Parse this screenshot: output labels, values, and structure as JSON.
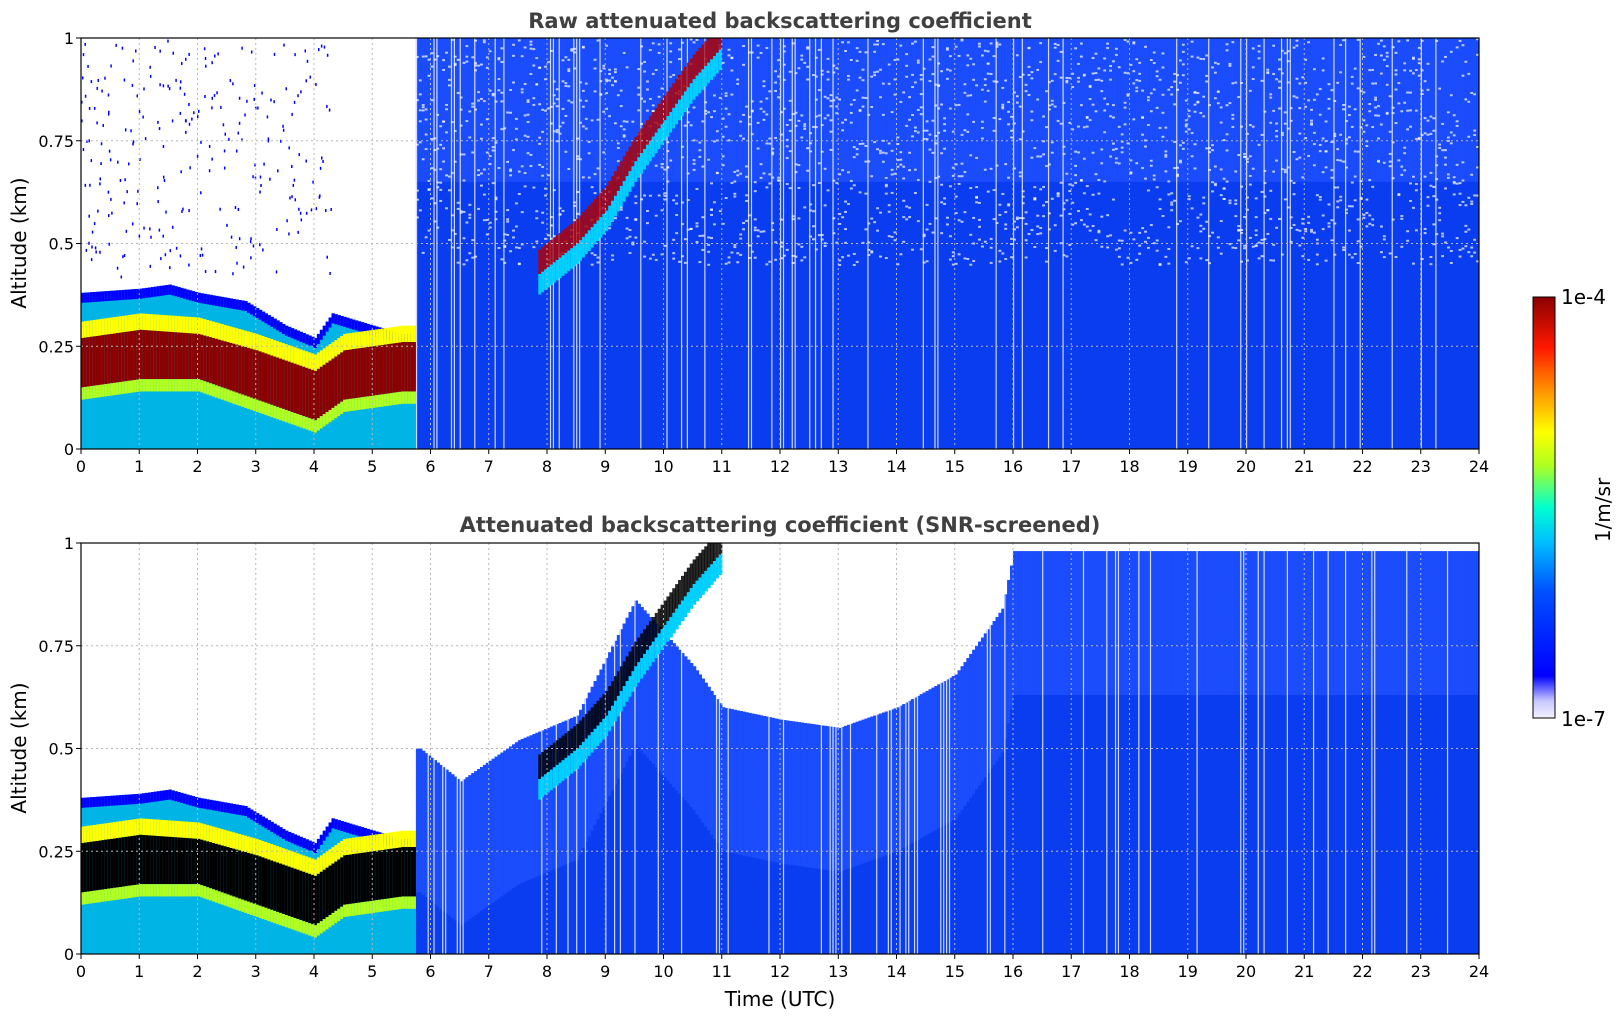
{
  "chart_data": [
    {
      "type": "heatmap",
      "title": "Raw attenuated backscattering coefficient",
      "xlabel": "",
      "ylabel": "Altitude (km)",
      "xlim": [
        0,
        24
      ],
      "ylim": [
        0,
        1
      ],
      "xticks": [
        0,
        1,
        2,
        3,
        4,
        5,
        6,
        7,
        8,
        9,
        10,
        11,
        12,
        13,
        14,
        15,
        16,
        17,
        18,
        19,
        20,
        21,
        22,
        23,
        24
      ],
      "yticks": [
        0,
        0.25,
        0.5,
        0.75,
        1
      ],
      "ytick_labels": [
        "0",
        "0.25",
        "0.5",
        "0.75",
        "1"
      ],
      "grid": true,
      "layer_top_km": [
        [
          0,
          0.38
        ],
        [
          1,
          0.39
        ],
        [
          1.5,
          0.4
        ],
        [
          2,
          0.38
        ],
        [
          2.8,
          0.36
        ],
        [
          3.5,
          0.3
        ],
        [
          4,
          0.27
        ],
        [
          4.3,
          0.33
        ],
        [
          5,
          0.3
        ],
        [
          5.5,
          0.28
        ]
      ],
      "dense_layer_km": [
        [
          0,
          0.15,
          0.27
        ],
        [
          1,
          0.17,
          0.29
        ],
        [
          2,
          0.17,
          0.28
        ],
        [
          3,
          0.12,
          0.24
        ],
        [
          4,
          0.07,
          0.19
        ],
        [
          4.5,
          0.12,
          0.24
        ],
        [
          5.5,
          0.14,
          0.26
        ]
      ],
      "rising_layer_km": [
        [
          7.8,
          0.42
        ],
        [
          8.5,
          0.5
        ],
        [
          9,
          0.58
        ],
        [
          9.5,
          0.7
        ],
        [
          10,
          0.8
        ],
        [
          10.5,
          0.9
        ],
        [
          11,
          0.98
        ]
      ]
    },
    {
      "type": "heatmap",
      "title": "Attenuated backscattering coefficient (SNR-screened)",
      "xlabel": "Time (UTC)",
      "ylabel": "Altitude (km)",
      "xlim": [
        0,
        24
      ],
      "ylim": [
        0,
        1
      ],
      "xticks": [
        0,
        1,
        2,
        3,
        4,
        5,
        6,
        7,
        8,
        9,
        10,
        11,
        12,
        13,
        14,
        15,
        16,
        17,
        18,
        19,
        20,
        21,
        22,
        23,
        24
      ],
      "yticks": [
        0,
        0.25,
        0.5,
        0.75,
        1
      ],
      "ytick_labels": [
        "0",
        "0.25",
        "0.5",
        "0.75",
        "1"
      ],
      "grid": true,
      "screened_top_km": [
        [
          5.8,
          0.5
        ],
        [
          6.5,
          0.42
        ],
        [
          7.5,
          0.52
        ],
        [
          8.5,
          0.58
        ],
        [
          9.5,
          0.86
        ],
        [
          10.5,
          0.7
        ],
        [
          11,
          0.6
        ],
        [
          12,
          0.57
        ],
        [
          13,
          0.55
        ],
        [
          14,
          0.6
        ],
        [
          15,
          0.68
        ],
        [
          15.8,
          0.84
        ],
        [
          16,
          0.98
        ],
        [
          24,
          0.98
        ]
      ]
    }
  ],
  "colorbar": {
    "label": "1/m/sr",
    "max_label": "1e-4",
    "min_label": "1e-7",
    "scale": "log",
    "range": [
      1e-07,
      0.0001
    ],
    "colormap": [
      "#f0f0ff",
      "#0000ff",
      "#0055ff",
      "#00c8ff",
      "#00ffcc",
      "#b4ff00",
      "#ffff00",
      "#ff9900",
      "#ff2200",
      "#8b0000"
    ]
  }
}
